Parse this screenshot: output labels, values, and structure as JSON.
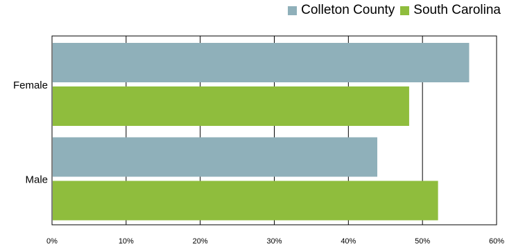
{
  "chart_data": {
    "type": "bar",
    "orientation": "horizontal",
    "categories": [
      "Female",
      "Male"
    ],
    "series": [
      {
        "name": "Colleton County",
        "color": "#8fb0ba",
        "values": [
          56.3,
          43.9
        ]
      },
      {
        "name": "South Carolina",
        "color": "#8fbd3d",
        "values": [
          48.2,
          52.1
        ]
      }
    ],
    "x_ticks": [
      "0%",
      "10%",
      "20%",
      "30%",
      "40%",
      "50%",
      "60%"
    ],
    "xlim": [
      0,
      60
    ],
    "grid": "vertical",
    "legend_position": "top-right",
    "title": "",
    "xlabel": "",
    "ylabel": ""
  }
}
